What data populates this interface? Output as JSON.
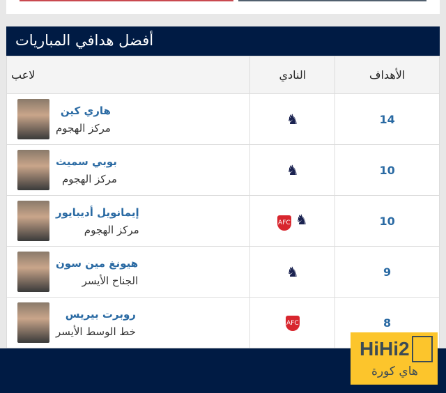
{
  "widget": {
    "title": "أفضل هدافي المباريات",
    "headers": {
      "player": "لاعب",
      "club": "النادي",
      "goals": "الأهداف"
    },
    "rows": [
      {
        "name": "هاري كين",
        "position": "مركز الهجوم",
        "clubs": [
          "tottenham"
        ],
        "goals": "14"
      },
      {
        "name": "بوبي سميث",
        "position": "مركز الهجوم",
        "clubs": [
          "tottenham"
        ],
        "goals": "10"
      },
      {
        "name": "إيمانويل أديبايور",
        "position": "مركز الهجوم",
        "clubs": [
          "tottenham",
          "arsenal"
        ],
        "goals": "10"
      },
      {
        "name": "هيونغ مين سون",
        "position": "الجناح الأيسر",
        "clubs": [
          "tottenham"
        ],
        "goals": "9"
      },
      {
        "name": "روبرت بيريس",
        "position": "خط الوسط الأيسر",
        "clubs": [
          "arsenal"
        ],
        "goals": "8"
      }
    ]
  },
  "logo": {
    "latin": "HiHi2",
    "arabic": "هاي كورة"
  },
  "colors": {
    "navy": "#001b44",
    "link": "#2a6aa3",
    "logo": "#fcc52c"
  }
}
